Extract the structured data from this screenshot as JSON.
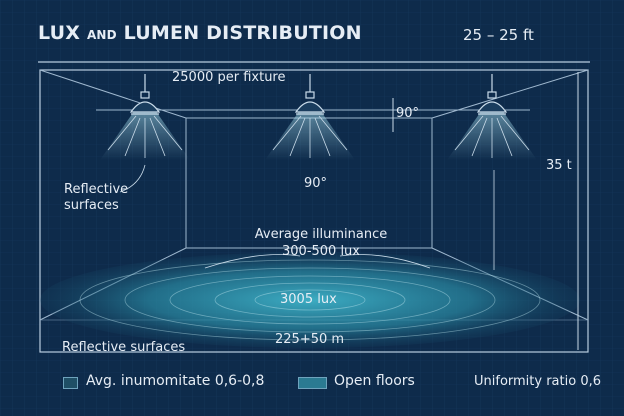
{
  "title": {
    "part1": "LUX",
    "part2": "AND",
    "part3": "LUMEN DISTRIBUTION"
  },
  "dimension_top": "25 – 25 ft",
  "fixture_label": "25000 per fixture",
  "angle_top": "90°",
  "angle_center": "90°",
  "height_label": "35 t",
  "reflective_upper": [
    "Reflective",
    "surfaces"
  ],
  "avg_illuminance": [
    "Average illuminance",
    "300-500 lux"
  ],
  "center_lux": "3005 lux",
  "floor_dim": "225+50 m",
  "reflective_lower": "Reflective surfaces",
  "legend": [
    {
      "label": "Avg. inumomitate 0,6-0,8",
      "color": "#1f4f66"
    },
    {
      "label": "Open floors",
      "color": "#2b7a92"
    }
  ],
  "uniformity": "Uniformity ratio 0,6",
  "colors": {
    "background": "#0e2b4b",
    "line": "#b9cde0",
    "glow": "#3aa6c0"
  }
}
